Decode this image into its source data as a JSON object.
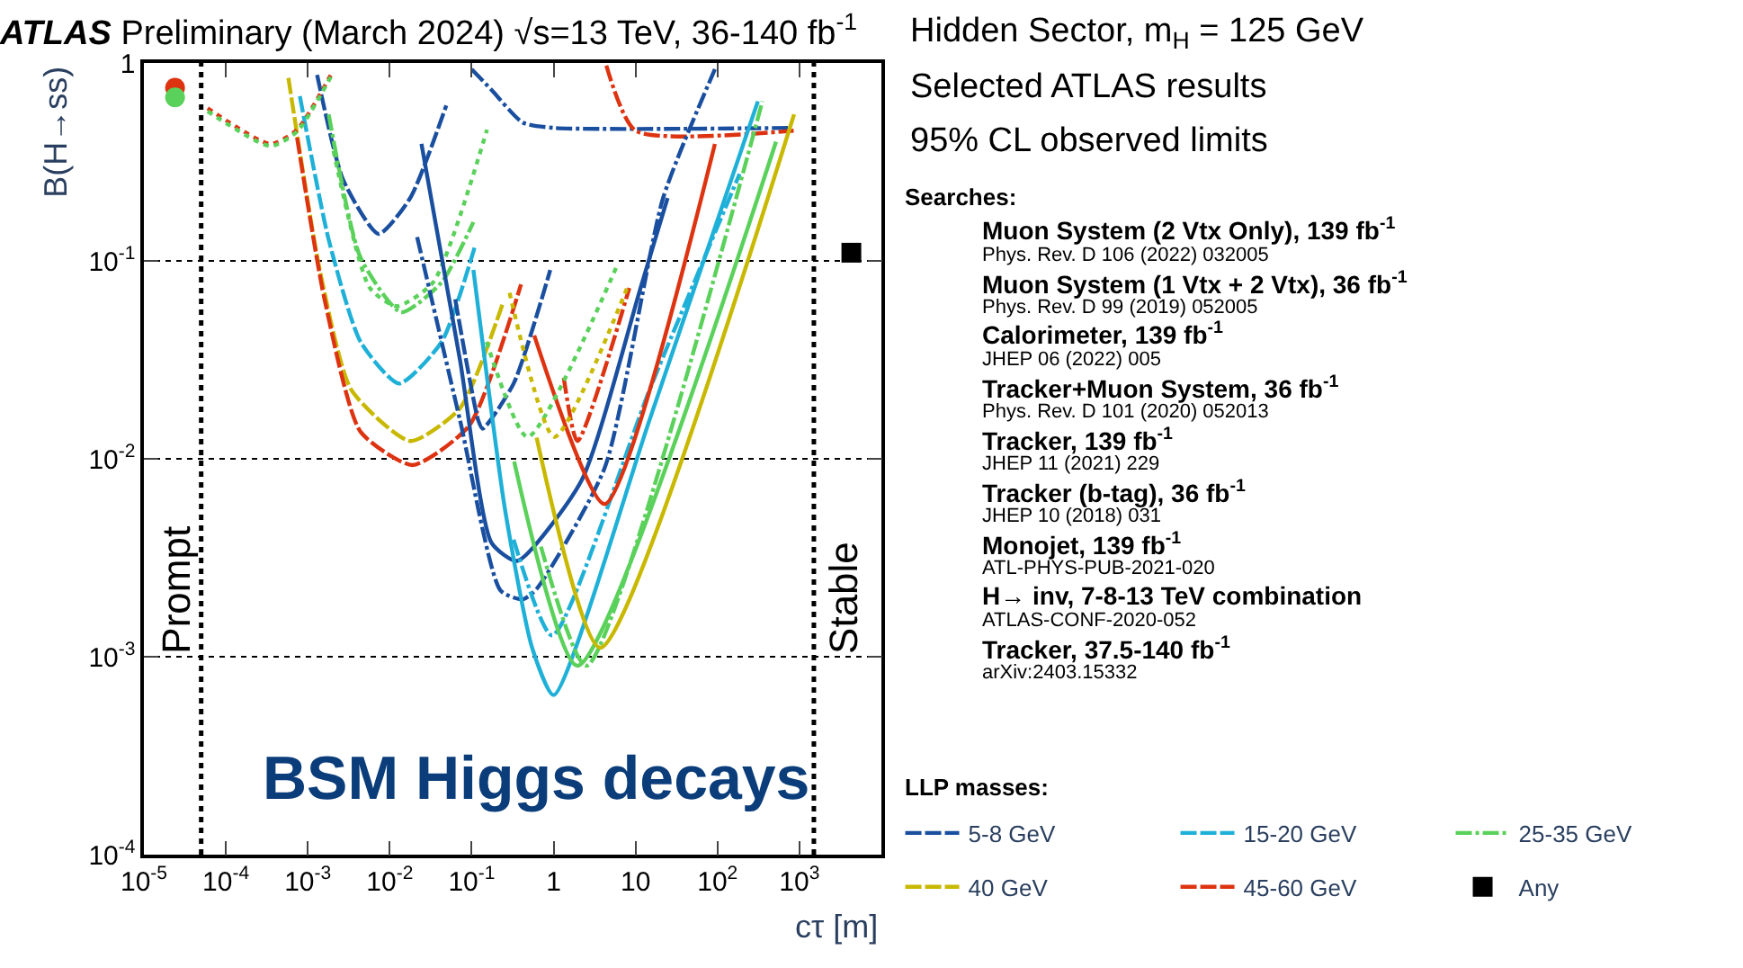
{
  "chart_data": {
    "type": "line",
    "title": "ATLAS Preliminary (March 2024) √s=13 TeV, 36-140 fb$^{-1}$",
    "xlabel": "cτ [m]",
    "ylabel": "B(H→ss)",
    "log": "xy",
    "xlim": [
      1e-05,
      10000
    ],
    "ylim": [
      0.0001,
      1
    ],
    "xticks": [
      {
        "value": 1e-05,
        "label": "10$^{-5}$"
      },
      {
        "value": 0.0001,
        "label": "10$^{-4}$"
      },
      {
        "value": 0.001,
        "label": "10$^{-3}$"
      },
      {
        "value": 0.01,
        "label": "10$^{-2}$"
      },
      {
        "value": 0.1,
        "label": "10$^{-1}$"
      },
      1,
      10,
      {
        "value": 100,
        "label": "10$^{2}$"
      },
      {
        "value": 1000,
        "label": "10$^{3}$"
      }
    ],
    "yticks": [
      {
        "value": 0.0001,
        "label": "10$^{-4}$"
      },
      {
        "value": 0.001,
        "label": "10$^{-3}$"
      },
      {
        "value": 0.01,
        "label": "10$^{-2}$"
      },
      {
        "value": 0.1,
        "label": "10$^{-1}$"
      },
      1
    ],
    "grid": "y",
    "legend": "bottom right",
    "ref_lines": [
      {
        "axis": "x",
        "value": 5e-05,
        "label": "Prompt",
        "color": "#000000",
        "line_style": "dotted"
      },
      {
        "axis": "x",
        "value": 1500,
        "label": "Stable",
        "color": "#000000",
        "line_style": "dotted"
      }
    ],
    "series": [
      {
        "name": "5-8 GeV",
        "color": "#1a4fa0",
        "line_style": "dashed",
        "x": [
          0.0013,
          0.0027,
          0.0073,
          0.0178,
          0.049
        ],
        "values": [
          0.87,
          0.257,
          0.137,
          0.208,
          0.61
        ]
      },
      {
        "name": "15-20 GeV",
        "color": "#1fb0d8",
        "line_style": "dashed",
        "x": [
          0.0008,
          0.0018,
          0.0044,
          0.013,
          0.043,
          0.11
        ],
        "values": [
          0.68,
          0.128,
          0.039,
          0.024,
          0.039,
          0.119
        ]
      },
      {
        "name": "25-35 GeV",
        "color": "#5ad15a",
        "line_style": "dashdot",
        "x": [
          0.0018,
          0.0044,
          0.0138,
          0.043,
          0.105
        ],
        "values": [
          0.55,
          0.104,
          0.055,
          0.078,
          0.157
        ]
      },
      {
        "name": "40 GeV",
        "color": "#c9b800",
        "line_style": "dashed",
        "x": [
          0.00058,
          0.0014,
          0.0034,
          0.0178,
          0.072,
          0.24
        ],
        "values": [
          0.84,
          0.09,
          0.0223,
          0.0123,
          0.018,
          0.061
        ]
      },
      {
        "name": "45-60 GeV",
        "color": "#dd3311",
        "line_style": "dashed",
        "x": [
          0.00074,
          0.0016,
          0.0044,
          0.019,
          0.093,
          0.4
        ],
        "values": [
          0.42,
          0.064,
          0.0137,
          0.0093,
          0.0147,
          0.076
        ]
      },
      {
        "name": "Any",
        "color": "#000000",
        "type": "scatter",
        "marker": "square",
        "x": [
          4300
        ],
        "values": [
          0.11
        ]
      },
      {
        "color": "#dd3311",
        "line_style": "dotted",
        "x": [
          6e-05,
          0.00035,
          0.00074,
          0.002
        ],
        "values": [
          0.59,
          0.39,
          0.46,
          0.9
        ]
      },
      {
        "color": "#5ad15a",
        "line_style": "dotted",
        "x": [
          6e-05,
          0.00035,
          0.00074,
          0.002
        ],
        "values": [
          0.57,
          0.38,
          0.45,
          0.88
        ]
      },
      {
        "color": "#dd3311",
        "type": "scatter",
        "marker": "circle",
        "x": [
          2.4e-05
        ],
        "values": [
          0.75
        ]
      },
      {
        "color": "#5ad15a",
        "type": "scatter",
        "marker": "circle",
        "x": [
          2.4e-05
        ],
        "values": [
          0.67
        ]
      },
      {
        "color": "#1a4fa0",
        "line_style": "dashdot",
        "x": [
          0.1,
          0.175,
          0.42,
          1,
          800
        ],
        "values": [
          0.93,
          0.73,
          0.5,
          0.47,
          0.47
        ]
      },
      {
        "color": "#dd3311",
        "line_style": "dashdot",
        "x": [
          4.4,
          10,
          850
        ],
        "values": [
          0.97,
          0.455,
          0.455
        ]
      },
      {
        "color": "#5ad15a",
        "line_style": "dotted",
        "x": [
          0.00206,
          0.0057,
          0.0122,
          0.034,
          0.154
        ],
        "values": [
          0.36,
          0.073,
          0.059,
          0.078,
          0.46
        ]
      },
      {
        "color": "#1a4fa0",
        "line_style": "dashdot",
        "x": [
          0.0216,
          0.072,
          0.225,
          0.42,
          0.62,
          4.2,
          21.7,
          93
        ],
        "values": [
          0.132,
          0.0157,
          0.00216,
          0.00195,
          0.0022,
          0.009,
          0.208,
          0.93
        ]
      },
      {
        "color": "#1a4fa0",
        "line_style": "solid",
        "x": [
          0.0244,
          0.072,
          0.175,
          0.36,
          2.2,
          11.5,
          24.6
        ],
        "values": [
          0.39,
          0.0316,
          0.00376,
          0.00305,
          0.0078,
          0.073,
          0.208
        ]
      },
      {
        "color": "#1a4fa0",
        "line_style": "dashed",
        "x": [
          0.063,
          0.12,
          0.136,
          0.325,
          0.91
        ],
        "values": [
          0.064,
          0.0157,
          0.0142,
          0.024,
          0.09
        ]
      },
      {
        "color": "#1fb0d8",
        "line_style": "solid",
        "x": [
          0.105,
          0.256,
          0.55,
          1.0,
          14.8,
          311
        ],
        "values": [
          0.09,
          0.0055,
          0.0011,
          0.00064,
          0.0157,
          0.64
        ]
      },
      {
        "color": "#1fb0d8",
        "line_style": "dashdot",
        "x": [
          0.325,
          0.96,
          14.8,
          186
        ],
        "values": [
          0.0039,
          0.00128,
          0.0223,
          0.275
        ]
      },
      {
        "color": "#5ad15a",
        "line_style": "solid",
        "x": [
          0.33,
          1.95,
          518
        ],
        "values": [
          0.0097,
          0.0009,
          0.4
        ]
      },
      {
        "color": "#5ad15a",
        "line_style": "dashdot",
        "x": [
          0.7,
          2.5,
          353
        ],
        "values": [
          0.0036,
          0.0009,
          0.64
        ]
      },
      {
        "color": "#c9b800",
        "line_style": "solid",
        "x": [
          0.62,
          3.7,
          860
        ],
        "values": [
          0.0128,
          0.00111,
          0.55
        ]
      },
      {
        "color": "#dd3311",
        "line_style": "solid",
        "x": [
          0.58,
          4.2,
          93
        ],
        "values": [
          0.042,
          0.0059,
          0.39
        ]
      },
      {
        "color": "#dd3311",
        "line_style": "dashdot",
        "x": [
          1.33,
          1.95,
          8.4
        ],
        "values": [
          0.0257,
          0.0123,
          0.073
        ]
      },
      {
        "color": "#5ad15a",
        "line_style": "dotted",
        "x": [
          0.152,
          0.48,
          6.1
        ],
        "values": [
          0.039,
          0.0129,
          0.097
        ]
      },
      {
        "color": "#c9b800",
        "line_style": "dotted",
        "x": [
          0.29,
          1.02,
          7.9
        ],
        "values": [
          0.069,
          0.0129,
          0.073
        ]
      }
    ],
    "annotations": [
      "Hidden Sector, m$_{H}$ = 125 GeV",
      "Selected ATLAS results",
      "95% CL observed limits",
      "Searches:",
      "Muon System (2 Vtx Only), 139 fb$^{-1}$",
      "Phys. Rev. D 106 (2022) 032005",
      "Muon System (1 Vtx + 2 Vtx), 36 fb$^{-1}$",
      "Phys. Rev. D 99 (2019) 052005",
      "Calorimeter, 139 fb$^{-1}$",
      "JHEP 06 (2022) 005",
      "Tracker+Muon System, 36 fb$^{-1}$",
      "Phys. Rev. D 101 (2020) 052013",
      "Tracker, 139 fb$^{-1}$",
      "JHEP 11 (2021) 229",
      "Tracker (b-tag), 36 fb$^{-1}$",
      "JHEP 10 (2018) 031",
      "Monojet, 139 fb$^{-1}$",
      "ATL-PHYS-PUB-2021-020",
      "H→ inv, 7-8-13 TeV combination",
      "ATLAS-CONF-2020-052",
      "Tracker, 37.5-140 fb$^{-1}$",
      "arXiv:2403.15332",
      "LLP masses:",
      "BSM Higgs decays"
    ]
  }
}
